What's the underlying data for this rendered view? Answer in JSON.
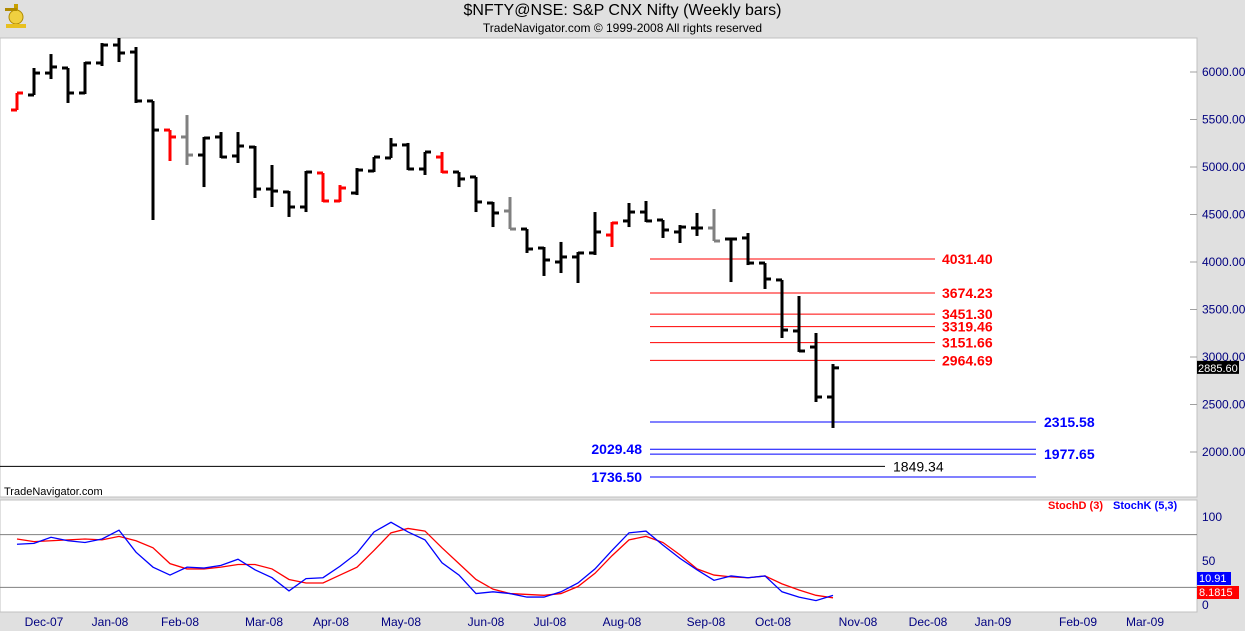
{
  "header": {
    "title": "$NFTY@NSE:  S&P CNX Nifty  (Weekly bars)",
    "subtitle": "TradeNavigator.com © 1999-2008 All rights reserved",
    "watermark": "TradeNavigator.com",
    "logo": "TradeNavigator"
  },
  "colors": {
    "up": "#000000",
    "red_bar": "#ff0000",
    "gray_bar": "#808080",
    "level_red": "#ff0000",
    "level_blue": "#0000ff",
    "level_black": "#000000",
    "stochD": "#ff0000",
    "stochK": "#0000ff",
    "axis_text": "#000080"
  },
  "chart_data": [
    {
      "type": "ohlc",
      "title": "$NFTY@NSE:  S&P CNX Nifty  (Weekly bars)",
      "y_ticks": [
        "6000.00",
        "5500.00",
        "5000.00",
        "4500.00",
        "4000.00",
        "3500.00",
        "3000.00",
        "2500.00",
        "2000.00"
      ],
      "ylim": [
        1650,
        6500
      ],
      "x_ticks": [
        "Dec-07",
        "Jan-08",
        "Feb-08",
        "Mar-08",
        "Apr-08",
        "May-08",
        "Jun-08",
        "Jul-08",
        "Aug-08",
        "Sep-08",
        "Oct-08",
        "Nov-08",
        "Dec-08",
        "Jan-09",
        "Feb-09",
        "Mar-09"
      ],
      "last_value": "2885.60",
      "bars": [
        {
          "o": 5600,
          "h": 5779,
          "l": 5600,
          "c": 5779,
          "color": "red"
        },
        {
          "o": 5758,
          "h": 6042,
          "l": 5758,
          "c": 5989,
          "color": "black"
        },
        {
          "o": 5989,
          "h": 6189,
          "l": 5926,
          "c": 6053,
          "color": "black"
        },
        {
          "o": 6042,
          "h": 6042,
          "l": 5674,
          "c": 5779,
          "color": "black"
        },
        {
          "o": 5779,
          "h": 6105,
          "l": 5768,
          "c": 6095,
          "color": "black"
        },
        {
          "o": 6095,
          "h": 6305,
          "l": 6063,
          "c": 6284,
          "color": "black"
        },
        {
          "o": 6284,
          "h": 6358,
          "l": 6105,
          "c": 6200,
          "color": "black"
        },
        {
          "o": 6210,
          "h": 6263,
          "l": 5674,
          "c": 5695,
          "color": "black"
        },
        {
          "o": 5695,
          "h": 5695,
          "l": 4442,
          "c": 5389,
          "color": "black"
        },
        {
          "o": 5389,
          "h": 5389,
          "l": 5063,
          "c": 5316,
          "color": "red"
        },
        {
          "o": 5316,
          "h": 5547,
          "l": 5021,
          "c": 5126,
          "color": "gray"
        },
        {
          "o": 5126,
          "h": 5316,
          "l": 4789,
          "c": 5305,
          "color": "black"
        },
        {
          "o": 5316,
          "h": 5368,
          "l": 5095,
          "c": 5105,
          "color": "black"
        },
        {
          "o": 5116,
          "h": 5368,
          "l": 5042,
          "c": 5221,
          "color": "black"
        },
        {
          "o": 5210,
          "h": 5221,
          "l": 4674,
          "c": 4768,
          "color": "black"
        },
        {
          "o": 4768,
          "h": 5021,
          "l": 4579,
          "c": 4747,
          "color": "black"
        },
        {
          "o": 4737,
          "h": 4747,
          "l": 4474,
          "c": 4579,
          "color": "black"
        },
        {
          "o": 4579,
          "h": 4958,
          "l": 4526,
          "c": 4947,
          "color": "black"
        },
        {
          "o": 4937,
          "h": 4937,
          "l": 4632,
          "c": 4642,
          "color": "red"
        },
        {
          "o": 4642,
          "h": 4810,
          "l": 4632,
          "c": 4779,
          "color": "red"
        },
        {
          "o": 4726,
          "h": 4989,
          "l": 4705,
          "c": 4968,
          "color": "black"
        },
        {
          "o": 4958,
          "h": 5105,
          "l": 4947,
          "c": 5105,
          "color": "black"
        },
        {
          "o": 5095,
          "h": 5305,
          "l": 5095,
          "c": 5232,
          "color": "black"
        },
        {
          "o": 5232,
          "h": 5253,
          "l": 4968,
          "c": 4979,
          "color": "black"
        },
        {
          "o": 4979,
          "h": 5158,
          "l": 4916,
          "c": 5158,
          "color": "black"
        },
        {
          "o": 5105,
          "h": 5158,
          "l": 4937,
          "c": 4947,
          "color": "red"
        },
        {
          "o": 4947,
          "h": 4947,
          "l": 4789,
          "c": 4874,
          "color": "black"
        },
        {
          "o": 4895,
          "h": 4895,
          "l": 4526,
          "c": 4632,
          "color": "black"
        },
        {
          "o": 4621,
          "h": 4632,
          "l": 4368,
          "c": 4516,
          "color": "black"
        },
        {
          "o": 4537,
          "h": 4684,
          "l": 4347,
          "c": 4347,
          "color": "gray"
        },
        {
          "o": 4347,
          "h": 4347,
          "l": 4095,
          "c": 4137,
          "color": "black"
        },
        {
          "o": 4147,
          "h": 4158,
          "l": 3853,
          "c": 4021,
          "color": "black"
        },
        {
          "o": 4000,
          "h": 4211,
          "l": 3884,
          "c": 4053,
          "color": "black"
        },
        {
          "o": 4053,
          "h": 4105,
          "l": 3779,
          "c": 4095,
          "color": "black"
        },
        {
          "o": 4095,
          "h": 4526,
          "l": 4074,
          "c": 4316,
          "color": "black"
        },
        {
          "o": 4284,
          "h": 4421,
          "l": 4158,
          "c": 4411,
          "color": "red"
        },
        {
          "o": 4432,
          "h": 4621,
          "l": 4368,
          "c": 4526,
          "color": "black"
        },
        {
          "o": 4526,
          "h": 4642,
          "l": 4421,
          "c": 4432,
          "color": "black"
        },
        {
          "o": 4442,
          "h": 4442,
          "l": 4253,
          "c": 4337,
          "color": "black"
        },
        {
          "o": 4316,
          "h": 4389,
          "l": 4200,
          "c": 4368,
          "color": "black"
        },
        {
          "o": 4358,
          "h": 4516,
          "l": 4274,
          "c": 4358,
          "color": "black"
        },
        {
          "o": 4358,
          "h": 4558,
          "l": 4221,
          "c": 4221,
          "color": "gray"
        },
        {
          "o": 4242,
          "h": 4253,
          "l": 3789,
          "c": 4242,
          "color": "black"
        },
        {
          "o": 4253,
          "h": 4305,
          "l": 3968,
          "c": 3989,
          "color": "black"
        },
        {
          "o": 3989,
          "h": 3989,
          "l": 3716,
          "c": 3821,
          "color": "black"
        },
        {
          "o": 3811,
          "h": 3811,
          "l": 3200,
          "c": 3284,
          "color": "black"
        },
        {
          "o": 3274,
          "h": 3642,
          "l": 3053,
          "c": 3063,
          "color": "black"
        },
        {
          "o": 3105,
          "h": 3253,
          "l": 2526,
          "c": 2579,
          "color": "black"
        },
        {
          "o": 2579,
          "h": 2926,
          "l": 2253,
          "c": 2885.6,
          "color": "black"
        }
      ],
      "levels": [
        {
          "value": 4031.4,
          "label": "4031.40",
          "color": "red",
          "label_side": "right"
        },
        {
          "value": 3674.23,
          "label": "3674.23",
          "color": "red",
          "label_side": "right"
        },
        {
          "value": 3451.3,
          "label": "3451.30",
          "color": "red",
          "label_side": "right"
        },
        {
          "value": 3319.46,
          "label": "3319.46",
          "color": "red",
          "label_side": "right"
        },
        {
          "value": 3151.66,
          "label": "3151.66",
          "color": "red",
          "label_side": "right"
        },
        {
          "value": 2964.69,
          "label": "2964.69",
          "color": "red",
          "label_side": "right"
        },
        {
          "value": 2315.58,
          "label": "2315.58",
          "color": "blue",
          "label_side": "right"
        },
        {
          "value": 2029.48,
          "label": "2029.48",
          "color": "blue",
          "label_side": "left"
        },
        {
          "value": 1977.65,
          "label": "1977.65",
          "color": "blue",
          "label_side": "right"
        },
        {
          "value": 1849.34,
          "label": "1849.34",
          "color": "black",
          "label_side": "right"
        },
        {
          "value": 1736.5,
          "label": "1736.50",
          "color": "blue",
          "label_side": "left"
        }
      ]
    },
    {
      "type": "line",
      "y_ticks": [
        "100",
        "50",
        "0"
      ],
      "ylim": [
        0,
        100
      ],
      "reference_lines": [
        80,
        20
      ],
      "legend_position": "top-right",
      "series": [
        {
          "name": "StochD (3)",
          "color": "red",
          "last_label": "8.1815",
          "values": [
            75,
            72,
            73,
            74,
            75,
            74,
            78,
            73,
            65,
            47,
            41,
            41,
            43,
            46,
            46,
            41,
            29,
            25,
            25,
            34,
            43,
            62,
            82,
            87,
            84,
            65,
            47,
            29,
            18,
            13,
            12,
            11,
            13,
            21,
            36,
            56,
            74,
            78,
            71,
            57,
            41,
            34,
            32,
            31,
            33,
            24,
            17,
            11,
            8.18
          ]
        },
        {
          "name": "StochK (5,3)",
          "color": "blue",
          "last_label": "10.91",
          "values": [
            69,
            70,
            77,
            73,
            71,
            75,
            85,
            60,
            43,
            34,
            43,
            42,
            45,
            52,
            40,
            31,
            16,
            30,
            31,
            44,
            59,
            83,
            94,
            83,
            74,
            48,
            34,
            13,
            15,
            13,
            9,
            9,
            15,
            25,
            41,
            62,
            82,
            84,
            68,
            53,
            40,
            28,
            33,
            31,
            33,
            15,
            9,
            5,
            10.91
          ]
        }
      ]
    }
  ]
}
